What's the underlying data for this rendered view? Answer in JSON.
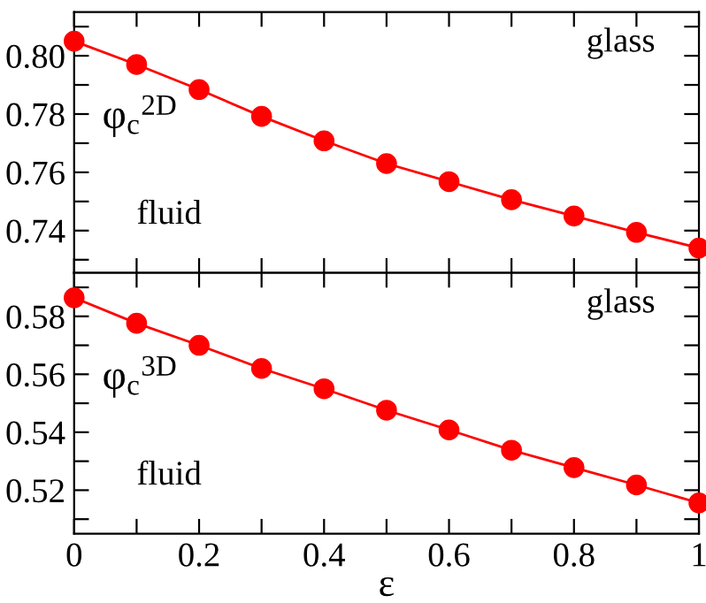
{
  "chart_data": [
    {
      "type": "line",
      "x": [
        0,
        0.1,
        0.2,
        0.3,
        0.4,
        0.5,
        0.6,
        0.7,
        0.8,
        0.9,
        1
      ],
      "series": [
        {
          "color": "#ff0000",
          "values": [
            0.805,
            0.797,
            0.7884,
            0.7792,
            0.7708,
            0.763,
            0.7568,
            0.7506,
            0.745,
            0.7394,
            0.734
          ]
        }
      ],
      "marker": "circle",
      "xlim": [
        0,
        1
      ],
      "ylim": [
        0.7255,
        0.815
      ],
      "xticks": [
        {
          "value": 0,
          "label": null
        },
        {
          "value": 0.1,
          "label": null
        },
        {
          "value": 0.2,
          "label": null
        },
        {
          "value": 0.3,
          "label": null
        },
        {
          "value": 0.4,
          "label": null
        },
        {
          "value": 0.5,
          "label": null
        },
        {
          "value": 0.6,
          "label": null
        },
        {
          "value": 0.7,
          "label": null
        },
        {
          "value": 0.8,
          "label": null
        },
        {
          "value": 0.9,
          "label": null
        },
        {
          "value": 1,
          "label": null
        }
      ],
      "yticks": [
        {
          "value": 0.73,
          "label": null
        },
        {
          "value": 0.74,
          "label": "0.74"
        },
        {
          "value": 0.75,
          "label": null
        },
        {
          "value": 0.76,
          "label": "0.76"
        },
        {
          "value": 0.77,
          "label": null
        },
        {
          "value": 0.78,
          "label": "0.78"
        },
        {
          "value": 0.79,
          "label": null
        },
        {
          "value": 0.8,
          "label": "0.80"
        },
        {
          "value": 0.81,
          "label": null
        }
      ],
      "tick_labels": "y",
      "annotations": [
        "φ$_{c}$$^{2D}$",
        "glass",
        "fluid"
      ]
    },
    {
      "type": "line",
      "x": [
        0,
        0.1,
        0.2,
        0.3,
        0.4,
        0.5,
        0.6,
        0.7,
        0.8,
        0.9,
        1
      ],
      "series": [
        {
          "color": "#ff0000",
          "values": [
            0.5864,
            0.5776,
            0.57,
            0.562,
            0.555,
            0.5476,
            0.5408,
            0.5338,
            0.5278,
            0.5218,
            0.5156
          ]
        }
      ],
      "marker": "circle",
      "xlim": [
        0,
        1
      ],
      "ylim": [
        0.505,
        0.595
      ],
      "xlabel": "ε",
      "xticks": [
        0,
        {
          "value": 0.1,
          "label": null
        },
        0.2,
        {
          "value": 0.3,
          "label": null
        },
        0.4,
        {
          "value": 0.5,
          "label": null
        },
        0.6,
        {
          "value": 0.7,
          "label": null
        },
        0.8,
        {
          "value": 0.9,
          "label": null
        },
        1
      ],
      "yticks": [
        {
          "value": 0.51,
          "label": null
        },
        {
          "value": 0.52,
          "label": "0.52"
        },
        {
          "value": 0.53,
          "label": null
        },
        {
          "value": 0.54,
          "label": "0.54"
        },
        {
          "value": 0.55,
          "label": null
        },
        {
          "value": 0.56,
          "label": "0.56"
        },
        {
          "value": 0.57,
          "label": null
        },
        {
          "value": 0.58,
          "label": "0.58"
        },
        {
          "value": 0.59,
          "label": null
        }
      ],
      "annotations": [
        "φ$_{c}$$^{3D}$",
        "glass",
        "fluid"
      ]
    }
  ]
}
